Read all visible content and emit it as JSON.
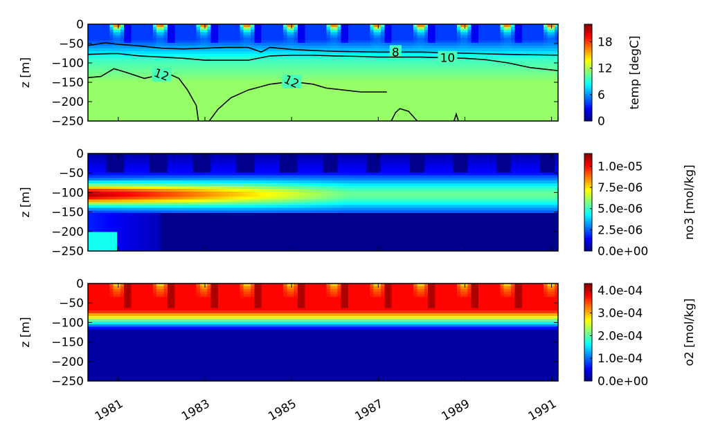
{
  "colormap": [
    "#00007f",
    "#0000ff",
    "#007fff",
    "#00ffff",
    "#7fff7f",
    "#ffff00",
    "#ff7f00",
    "#ff0000",
    "#7f0000"
  ],
  "chart_data": [
    {
      "type": "heatmap",
      "variable": "temp",
      "ylabel": "z [m]",
      "ylim": [
        -250,
        0
      ],
      "yticks": [
        0,
        -50,
        -100,
        -150,
        -200,
        -250
      ],
      "xlim": [
        1980.3,
        1991.15
      ],
      "xticks": [
        1981,
        1983,
        1985,
        1987,
        1989,
        1991
      ],
      "colorbar": {
        "label": "temp [degC]",
        "range": [
          0,
          22
        ],
        "ticks": [
          0,
          6,
          12,
          18
        ],
        "tick_labels": [
          "0",
          "6",
          "12",
          "18"
        ]
      },
      "contours": [
        {
          "level": 8,
          "label": "8",
          "x": [
            1980.3,
            1980.7,
            1981,
            1981.5,
            1982,
            1982.5,
            1983,
            1983.5,
            1984,
            1984.3,
            1984.5,
            1985,
            1985.5,
            1986,
            1987,
            1988,
            1989,
            1990,
            1991.15
          ],
          "y": [
            -55,
            -48,
            -52,
            -56,
            -62,
            -64,
            -62,
            -60,
            -60,
            -72,
            -60,
            -65,
            -68,
            -70,
            -72,
            -72,
            -75,
            -78,
            -80
          ]
        },
        {
          "level": 10,
          "label": "10",
          "x": [
            1980.3,
            1980.8,
            1981,
            1981.5,
            1982,
            1982.5,
            1983,
            1983.5,
            1984,
            1984.5,
            1985,
            1985.5,
            1986,
            1986.5,
            1987,
            1988,
            1989,
            1989.5,
            1990,
            1990.5,
            1991.15
          ],
          "y": [
            -78,
            -76,
            -76,
            -82,
            -85,
            -88,
            -93,
            -93,
            -93,
            -82,
            -80,
            -80,
            -82,
            -83,
            -85,
            -85,
            -88,
            -92,
            -100,
            -112,
            -120
          ]
        },
        {
          "level": 12,
          "label": "12",
          "x": [
            1980.3,
            1980.6,
            1980.9,
            1981.2,
            1981.6,
            1982,
            1982.2,
            1982.4,
            1982.6,
            1982.8,
            1982.85
          ],
          "y": [
            -138,
            -135,
            -115,
            -125,
            -140,
            -130,
            -130,
            -140,
            -170,
            -210,
            -250
          ]
        },
        {
          "level": 12,
          "label": "12",
          "x": [
            1983.1,
            1983.3,
            1983.6,
            1984,
            1984.5,
            1985,
            1985.5,
            1985.8,
            1986.2,
            1986.6,
            1987.2
          ],
          "y": [
            -250,
            -220,
            -190,
            -170,
            -155,
            -148,
            -155,
            -165,
            -170,
            -175,
            -175
          ]
        },
        {
          "level": 12,
          "label": "",
          "x": [
            1987.3,
            1987.4,
            1987.5,
            1987.7,
            1987.9
          ],
          "y": [
            -250,
            -228,
            -218,
            -225,
            -250
          ]
        },
        {
          "level": 12,
          "label": "",
          "x": [
            1988.75,
            1988.8,
            1988.85
          ],
          "y": [
            -250,
            -232,
            -250
          ]
        }
      ]
    },
    {
      "type": "heatmap",
      "variable": "no3",
      "ylabel": "z [m]",
      "ylim": [
        -250,
        0
      ],
      "yticks": [
        0,
        -50,
        -100,
        -150,
        -200,
        -250
      ],
      "xlim": [
        1980.3,
        1991.15
      ],
      "xticks": [
        1981,
        1983,
        1985,
        1987,
        1989,
        1991
      ],
      "colorbar": {
        "label": "no3 [mol/kg]",
        "range": [
          0,
          1.15e-05
        ],
        "ticks": [
          0,
          2.5e-06,
          5e-06,
          7.5e-06,
          1e-05
        ],
        "tick_labels": [
          "0.0e+00",
          "2.5e-06",
          "5.0e-06",
          "7.5e-06",
          "1.0e-05"
        ]
      }
    },
    {
      "type": "heatmap",
      "variable": "o2",
      "ylabel": "z [m]",
      "ylim": [
        -250,
        0
      ],
      "yticks": [
        0,
        -50,
        -100,
        -150,
        -200,
        -250
      ],
      "xlim": [
        1980.3,
        1991.15
      ],
      "xticks": [
        1981,
        1983,
        1985,
        1987,
        1989,
        1991
      ],
      "xtick_labels": [
        "1981",
        "1983",
        "1985",
        "1987",
        "1989",
        "1991"
      ],
      "colorbar": {
        "label": "o2 [mol/kg]",
        "range": [
          0,
          0.00043
        ],
        "ticks": [
          0,
          0.0001,
          0.0002,
          0.0003,
          0.0004
        ],
        "tick_labels": [
          "0.0e+00",
          "1.0e-04",
          "2.0e-04",
          "3.0e-04",
          "4.0e-04"
        ]
      }
    }
  ]
}
